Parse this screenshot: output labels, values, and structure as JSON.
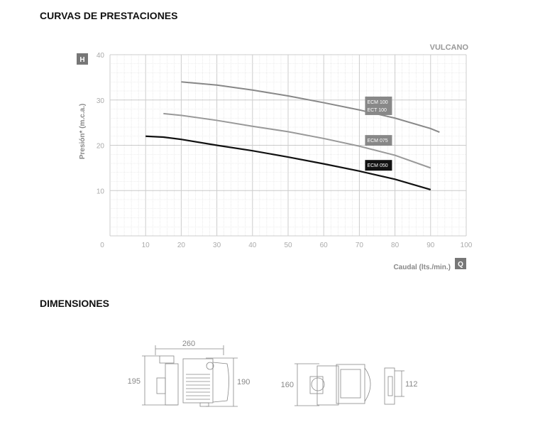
{
  "headings": {
    "curves": "CURVAS DE PRESTACIONES",
    "dimensions": "DIMENSIONES"
  },
  "brand": "VULCANO",
  "chart_data": {
    "type": "line",
    "ylabel": "Presión* (m.c.a.)",
    "xlabel": "Caudal (lts./min.)",
    "y_badge": "H",
    "x_badge": "Q",
    "xlim": [
      0,
      100
    ],
    "ylim": [
      0,
      40
    ],
    "xticks": [
      0,
      10,
      20,
      30,
      40,
      50,
      60,
      70,
      80,
      90,
      100
    ],
    "yticks": [
      10,
      20,
      30,
      40
    ],
    "grid": true,
    "series": [
      {
        "name": "ECM 100 / ECT 100",
        "label_lines": [
          "ECM 100",
          "ECT  100"
        ],
        "color": "#888888",
        "x": [
          20,
          30,
          40,
          50,
          60,
          70,
          80,
          90,
          92.5
        ],
        "y": [
          34,
          33.3,
          32.2,
          30.9,
          29.4,
          27.8,
          26,
          23.7,
          22.9
        ]
      },
      {
        "name": "ECM 075",
        "label_lines": [
          "ECM 075"
        ],
        "color": "#999999",
        "x": [
          15,
          20,
          30,
          40,
          50,
          60,
          70,
          80,
          90
        ],
        "y": [
          27,
          26.6,
          25.5,
          24.2,
          23,
          21.5,
          19.8,
          17.8,
          15
        ]
      },
      {
        "name": "ECM 050",
        "label_lines": [
          "ECM 050"
        ],
        "color": "#111111",
        "x": [
          10,
          15,
          20,
          30,
          40,
          50,
          60,
          70,
          80,
          90
        ],
        "y": [
          22,
          21.8,
          21.3,
          20,
          18.8,
          17.4,
          15.9,
          14.3,
          12.5,
          10.2
        ]
      }
    ]
  },
  "dimensions": {
    "length": "260",
    "height_left": "195",
    "height_right": "190",
    "height_side": "160",
    "width_side": "112"
  }
}
